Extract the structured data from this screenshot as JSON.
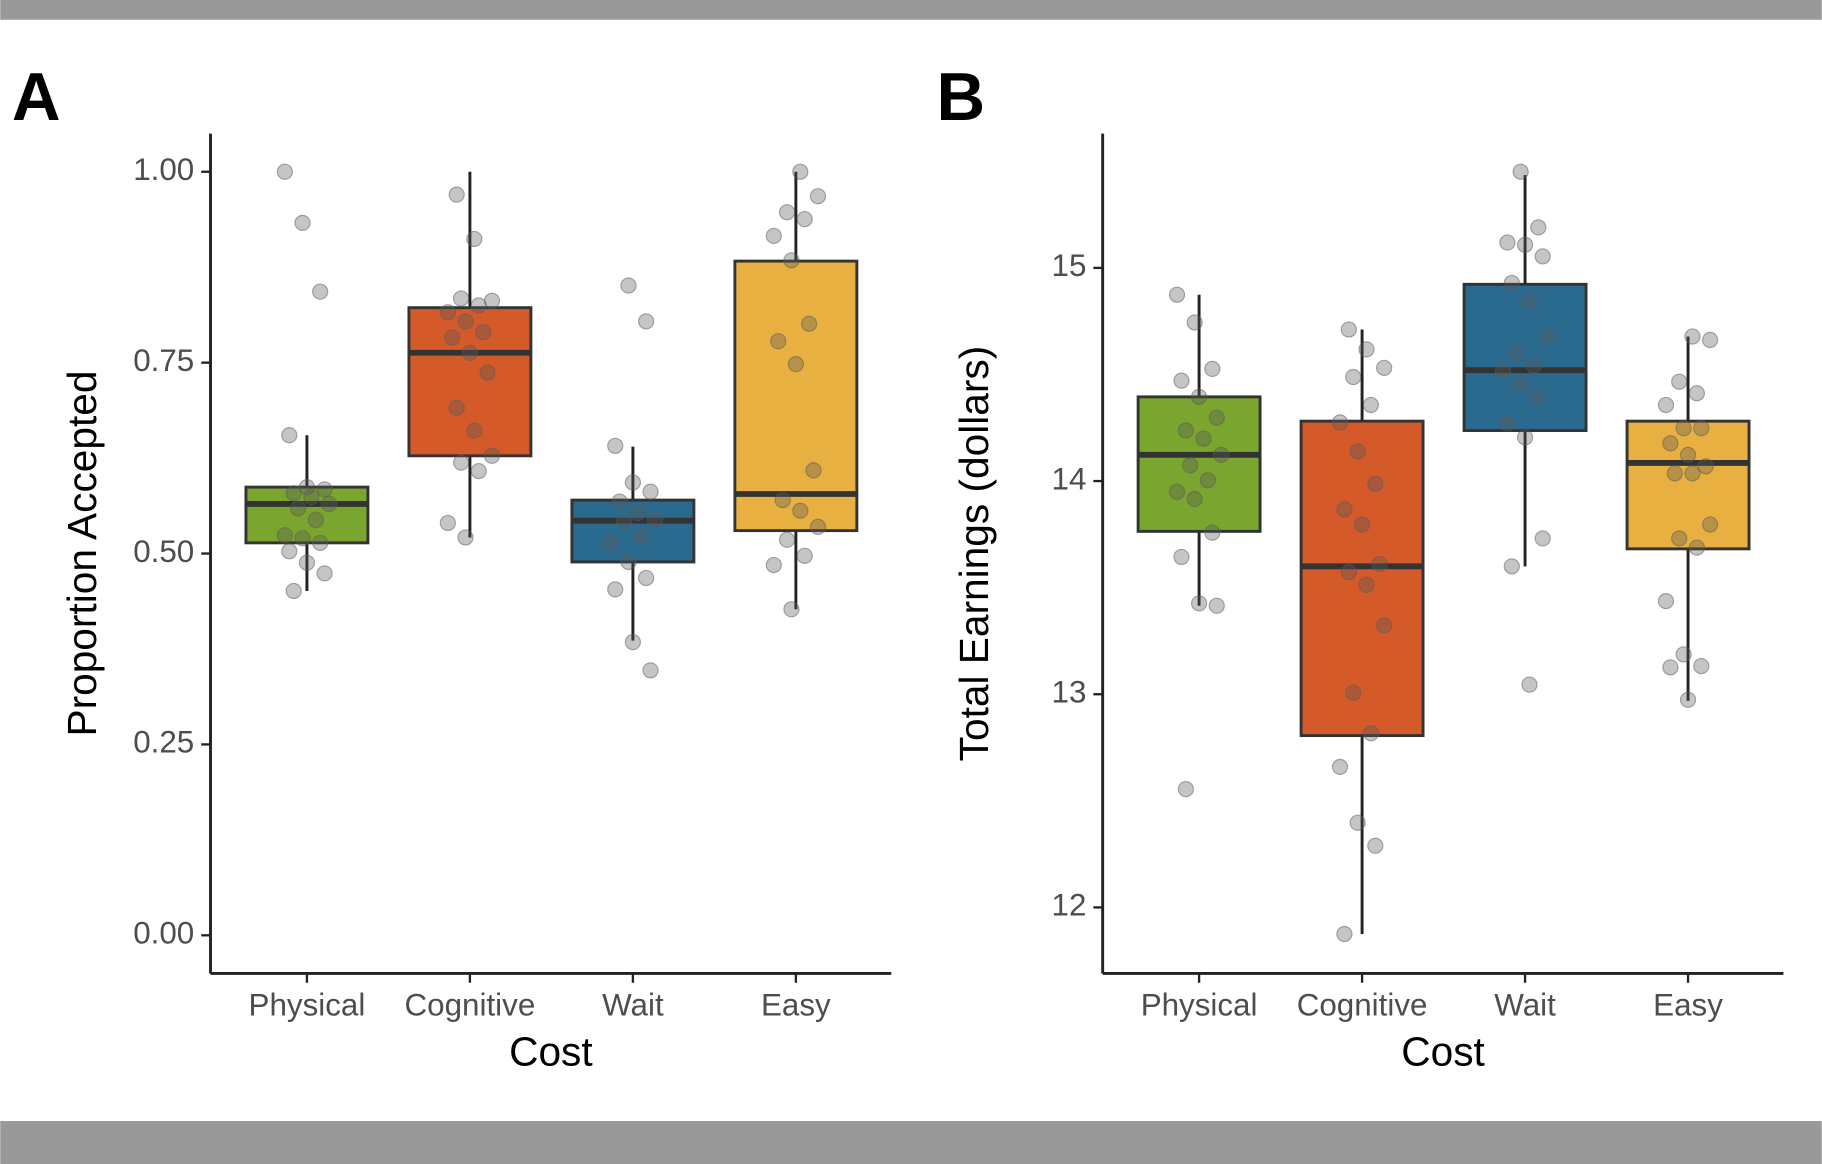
{
  "chart_data": [
    {
      "type": "box",
      "panel": "A",
      "y_label": "Proportion Accepted",
      "x_label": "Cost",
      "categories": [
        "Physical",
        "Cognitive",
        "Wait",
        "Easy"
      ],
      "colors": [
        "#7aa52e",
        "#d45a2a",
        "#2a6a8f",
        "#e8b040"
      ],
      "ylim": [
        -0.05,
        1.05
      ],
      "yticks": [
        {
          "value": 0,
          "label": "0.00"
        },
        {
          "value": 0.25,
          "label": "0.25"
        },
        {
          "value": 0.5,
          "label": "0.50"
        },
        {
          "value": 0.75,
          "label": "0.75"
        },
        {
          "value": 1,
          "label": "1.00"
        }
      ],
      "boxes": [
        {
          "low": 0.451,
          "q1": 0.514,
          "median": 0.565,
          "q3": 0.587,
          "high": 0.655
        },
        {
          "low": 0.521,
          "q1": 0.628,
          "median": 0.763,
          "q3": 0.822,
          "high": 1.0
        },
        {
          "low": 0.386,
          "q1": 0.489,
          "median": 0.543,
          "q3": 0.57,
          "high": 0.64
        },
        {
          "low": 0.427,
          "q1": 0.53,
          "median": 0.578,
          "q3": 0.883,
          "high": 1.0
        }
      ],
      "points": [
        [
          1.0,
          0.933,
          0.843,
          0.655,
          0.587,
          0.584,
          0.579,
          0.574,
          0.565,
          0.559,
          0.544,
          0.524,
          0.52,
          0.514,
          0.503,
          0.488,
          0.474,
          0.451
        ],
        [
          0.97,
          0.912,
          0.831,
          0.834,
          0.825,
          0.816,
          0.804,
          0.79,
          0.783,
          0.763,
          0.737,
          0.691,
          0.661,
          0.628,
          0.619,
          0.608,
          0.54,
          0.521
        ],
        [
          0.851,
          0.804,
          0.641,
          0.593,
          0.581,
          0.568,
          0.553,
          0.544,
          0.541,
          0.523,
          0.514,
          0.489,
          0.468,
          0.453,
          0.384,
          0.347
        ],
        [
          1.0,
          0.968,
          0.947,
          0.938,
          0.916,
          0.884,
          0.801,
          0.778,
          0.748,
          0.609,
          0.57,
          0.556,
          0.535,
          0.518,
          0.497,
          0.485,
          0.427
        ]
      ]
    },
    {
      "type": "box",
      "panel": "B",
      "y_label": "Total Earnings (dollars)",
      "x_label": "Cost",
      "categories": [
        "Physical",
        "Cognitive",
        "Wait",
        "Easy"
      ],
      "colors": [
        "#7aa52e",
        "#d45a2a",
        "#2a6a8f",
        "#e8b040"
      ],
      "ylim": [
        11.69,
        15.63
      ],
      "yticks": [
        12,
        13,
        14,
        15
      ],
      "boxes": [
        {
          "low": 13.415,
          "q1": 13.764,
          "median": 14.123,
          "q3": 14.395,
          "high": 14.874
        },
        {
          "low": 11.875,
          "q1": 12.806,
          "median": 13.6,
          "q3": 14.281,
          "high": 14.711
        },
        {
          "low": 13.6,
          "q1": 14.237,
          "median": 14.52,
          "q3": 14.923,
          "high": 15.435
        },
        {
          "low": 12.969,
          "q1": 13.682,
          "median": 14.085,
          "q3": 14.281,
          "high": 14.678
        }
      ],
      "points": [
        [
          14.874,
          14.744,
          14.526,
          14.471,
          14.395,
          14.297,
          14.237,
          14.199,
          14.123,
          14.074,
          14.003,
          13.949,
          13.916,
          13.758,
          13.644,
          13.426,
          13.415,
          12.555
        ],
        [
          14.711,
          14.618,
          14.531,
          14.488,
          14.357,
          14.275,
          14.139,
          13.987,
          13.867,
          13.796,
          13.611,
          13.573,
          13.513,
          13.323,
          13.007,
          12.817,
          12.659,
          12.397,
          12.289,
          11.875
        ],
        [
          15.451,
          15.19,
          15.119,
          15.108,
          15.054,
          14.929,
          14.842,
          14.678,
          14.597,
          14.542,
          14.515,
          14.455,
          14.395,
          14.27,
          14.205,
          13.731,
          13.6,
          13.045
        ],
        [
          14.678,
          14.662,
          14.466,
          14.412,
          14.357,
          14.248,
          14.248,
          14.177,
          14.123,
          14.069,
          14.036,
          14.036,
          13.796,
          13.731,
          13.688,
          13.437,
          13.187,
          13.132,
          13.126,
          12.974
        ]
      ]
    }
  ]
}
